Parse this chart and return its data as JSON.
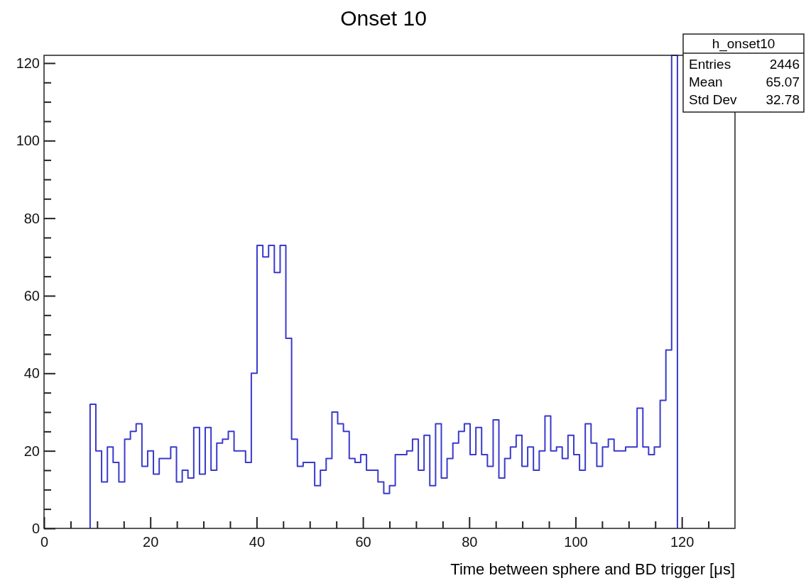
{
  "chart_data": {
    "type": "histogram",
    "title": "Onset 10",
    "xlabel": "Time between sphere and BD trigger [μs]",
    "annotations": [
      "h_onset10",
      "Entries",
      "2446",
      "Mean",
      "65.07",
      "Std Dev",
      "32.78"
    ],
    "color": "#3a3acc",
    "xlim": [
      0,
      130
    ],
    "ylim": [
      0,
      122
    ],
    "xticks": [
      0,
      {
        "value": 5,
        "label": null
      },
      {
        "value": 10,
        "label": null
      },
      {
        "value": 15,
        "label": null
      },
      20,
      {
        "value": 25,
        "label": null
      },
      {
        "value": 30,
        "label": null
      },
      {
        "value": 35,
        "label": null
      },
      40,
      {
        "value": 45,
        "label": null
      },
      {
        "value": 50,
        "label": null
      },
      {
        "value": 55,
        "label": null
      },
      60,
      {
        "value": 65,
        "label": null
      },
      {
        "value": 70,
        "label": null
      },
      {
        "value": 75,
        "label": null
      },
      80,
      {
        "value": 85,
        "label": null
      },
      {
        "value": 90,
        "label": null
      },
      {
        "value": 95,
        "label": null
      },
      100,
      {
        "value": 105,
        "label": null
      },
      {
        "value": 110,
        "label": null
      },
      {
        "value": 115,
        "label": null
      },
      120,
      {
        "value": 125,
        "label": null
      }
    ],
    "yticks": [
      0,
      {
        "value": 5,
        "label": null
      },
      {
        "value": 10,
        "label": null
      },
      {
        "value": 15,
        "label": null
      },
      20,
      {
        "value": 25,
        "label": null
      },
      {
        "value": 30,
        "label": null
      },
      {
        "value": 35,
        "label": null
      },
      40,
      {
        "value": 45,
        "label": null
      },
      {
        "value": 50,
        "label": null
      },
      {
        "value": 55,
        "label": null
      },
      60,
      {
        "value": 65,
        "label": null
      },
      {
        "value": 70,
        "label": null
      },
      {
        "value": 75,
        "label": null
      },
      80,
      {
        "value": 85,
        "label": null
      },
      {
        "value": 90,
        "label": null
      },
      {
        "value": 95,
        "label": null
      },
      100,
      {
        "value": 105,
        "label": null
      },
      {
        "value": 110,
        "label": null
      },
      {
        "value": 115,
        "label": null
      },
      120
    ],
    "bins": [
      8.67,
      9.75,
      10.83,
      11.92,
      13,
      14.08,
      15.17,
      16.25,
      17.33,
      18.42,
      19.5,
      20.58,
      21.67,
      22.75,
      23.83,
      24.92,
      26,
      27.08,
      28.17,
      29.25,
      30.33,
      31.42,
      32.5,
      33.58,
      34.67,
      35.75,
      36.83,
      37.92,
      39,
      40.08,
      41.17,
      42.25,
      43.33,
      44.42,
      45.5,
      46.58,
      47.67,
      48.75,
      49.83,
      50.92,
      52,
      53.08,
      54.17,
      55.25,
      56.33,
      57.42,
      58.5,
      59.58,
      60.67,
      61.75,
      62.83,
      63.92,
      65,
      66.08,
      67.17,
      68.25,
      69.33,
      70.42,
      71.5,
      72.58,
      73.67,
      74.75,
      75.83,
      76.92,
      78,
      79.08,
      80.17,
      81.25,
      82.33,
      83.42,
      84.5,
      85.58,
      86.67,
      87.75,
      88.83,
      89.92,
      91,
      92.08,
      93.17,
      94.25,
      95.33,
      96.42,
      97.5,
      98.58,
      99.67,
      100.75,
      101.83,
      102.92,
      104,
      105.08,
      106.17,
      107.25,
      108.33,
      109.42,
      110.5,
      111.58,
      112.67,
      113.75,
      114.83,
      115.92,
      117,
      118.08,
      119.17
    ],
    "values": [
      32,
      20,
      12,
      21,
      17,
      12,
      23,
      25,
      27,
      16,
      20,
      14,
      18,
      18,
      21,
      12,
      15,
      13,
      26,
      14,
      26,
      15,
      22,
      23,
      25,
      20,
      20,
      17,
      40,
      73,
      70,
      73,
      66,
      73,
      49,
      23,
      16,
      17,
      17,
      11,
      15,
      18,
      30,
      27,
      25,
      18,
      17,
      19,
      15,
      15,
      12,
      9,
      11,
      19,
      19,
      20,
      23,
      15,
      24,
      11,
      27,
      13,
      18,
      22,
      25,
      27,
      19,
      26,
      19,
      16,
      28,
      13,
      18,
      21,
      24,
      16,
      21,
      15,
      20,
      29,
      20,
      21,
      18,
      24,
      19,
      15,
      27,
      22,
      16,
      21,
      23,
      20,
      20,
      21,
      21,
      31,
      21,
      19,
      21,
      33,
      46,
      122
    ]
  }
}
